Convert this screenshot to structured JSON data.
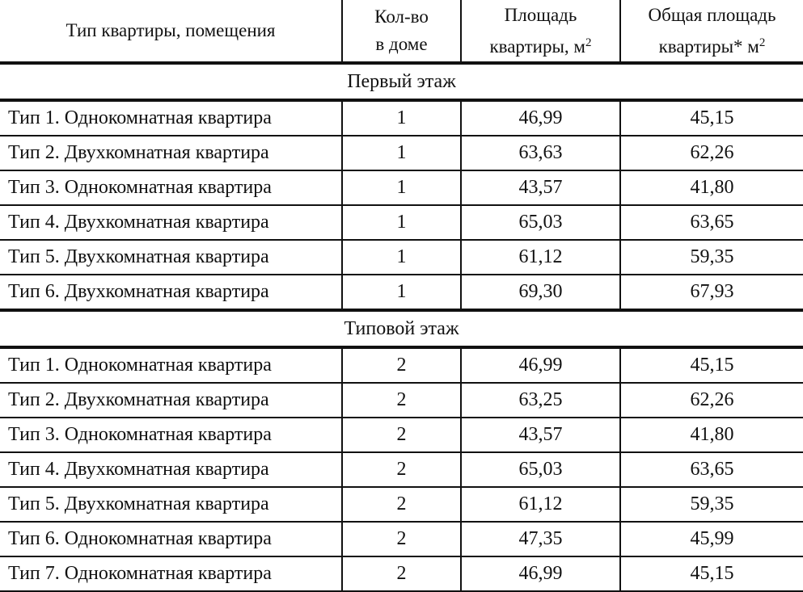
{
  "header": {
    "col1": "Тип квартиры, помещения",
    "col2_line1": "Кол-во",
    "col2_line2": "в доме",
    "col3_line1": "Площадь",
    "col3_line2": "квартиры, м",
    "col3_sup": "2",
    "col4_line1": "Общая площадь",
    "col4_line2": "квартиры* м",
    "col4_sup": "2"
  },
  "sections": [
    {
      "title": "Первый этаж",
      "rows": [
        [
          "Тип 1. Однокомнатная квартира",
          "1",
          "46,99",
          "45,15"
        ],
        [
          "Тип 2. Двухкомнатная квартира",
          "1",
          "63,63",
          "62,26"
        ],
        [
          "Тип 3. Однокомнатная квартира",
          "1",
          "43,57",
          "41,80"
        ],
        [
          "Тип 4. Двухкомнатная квартира",
          "1",
          "65,03",
          "63,65"
        ],
        [
          "Тип 5. Двухкомнатная квартира",
          "1",
          "61,12",
          "59,35"
        ],
        [
          "Тип 6. Двухкомнатная квартира",
          "1",
          "69,30",
          "67,93"
        ]
      ]
    },
    {
      "title": "Типовой этаж",
      "rows": [
        [
          "Тип 1. Однокомнатная квартира",
          "2",
          "46,99",
          "45,15"
        ],
        [
          "Тип 2. Двухкомнатная квартира",
          "2",
          "63,25",
          "62,26"
        ],
        [
          "Тип 3. Однокомнатная квартира",
          "2",
          "43,57",
          "41,80"
        ],
        [
          "Тип 4. Двухкомнатная квартира",
          "2",
          "65,03",
          "63,65"
        ],
        [
          "Тип 5. Двухкомнатная квартира",
          "2",
          "61,12",
          "59,35"
        ],
        [
          "Тип 6. Однокомнатная квартира",
          "2",
          "47,35",
          "45,99"
        ],
        [
          "Тип 7. Однокомнатная квартира",
          "2",
          "46,99",
          "45,15"
        ]
      ]
    }
  ]
}
